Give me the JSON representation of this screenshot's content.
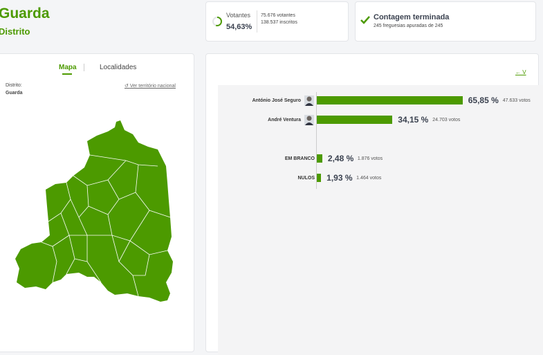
{
  "header": {
    "title": "Guarda",
    "subtitle": "Distrito"
  },
  "turnout": {
    "label": "Votantes",
    "percent": 54.63,
    "percent_label": "54,63%",
    "voters": "75.676 votantes",
    "registered": "138.537 inscritos"
  },
  "count": {
    "title": "Contagem terminada",
    "detail": "245 freguesias apuradas de 245"
  },
  "tabs": [
    "Mapa",
    "Localidades"
  ],
  "location": {
    "label": "Distrito:",
    "value": "Guarda",
    "link": "Ver território nacional"
  },
  "back_link": "← V",
  "results": [
    {
      "name": "António José Seguro",
      "percent": 65.85,
      "percent_label": "65,85 %",
      "votes": "47.633 votos",
      "photo": true
    },
    {
      "name": "André Ventura",
      "percent": 34.15,
      "percent_label": "34,15 %",
      "votes": "24.703 votos",
      "photo": true
    },
    {
      "name": "EM BRANCO",
      "percent": 2.48,
      "percent_label": "2,48 %",
      "votes": "1.876 votos",
      "photo": false
    },
    {
      "name": "NULOS",
      "percent": 1.93,
      "percent_label": "1,93 %",
      "votes": "1.464 votos",
      "photo": false
    }
  ]
}
